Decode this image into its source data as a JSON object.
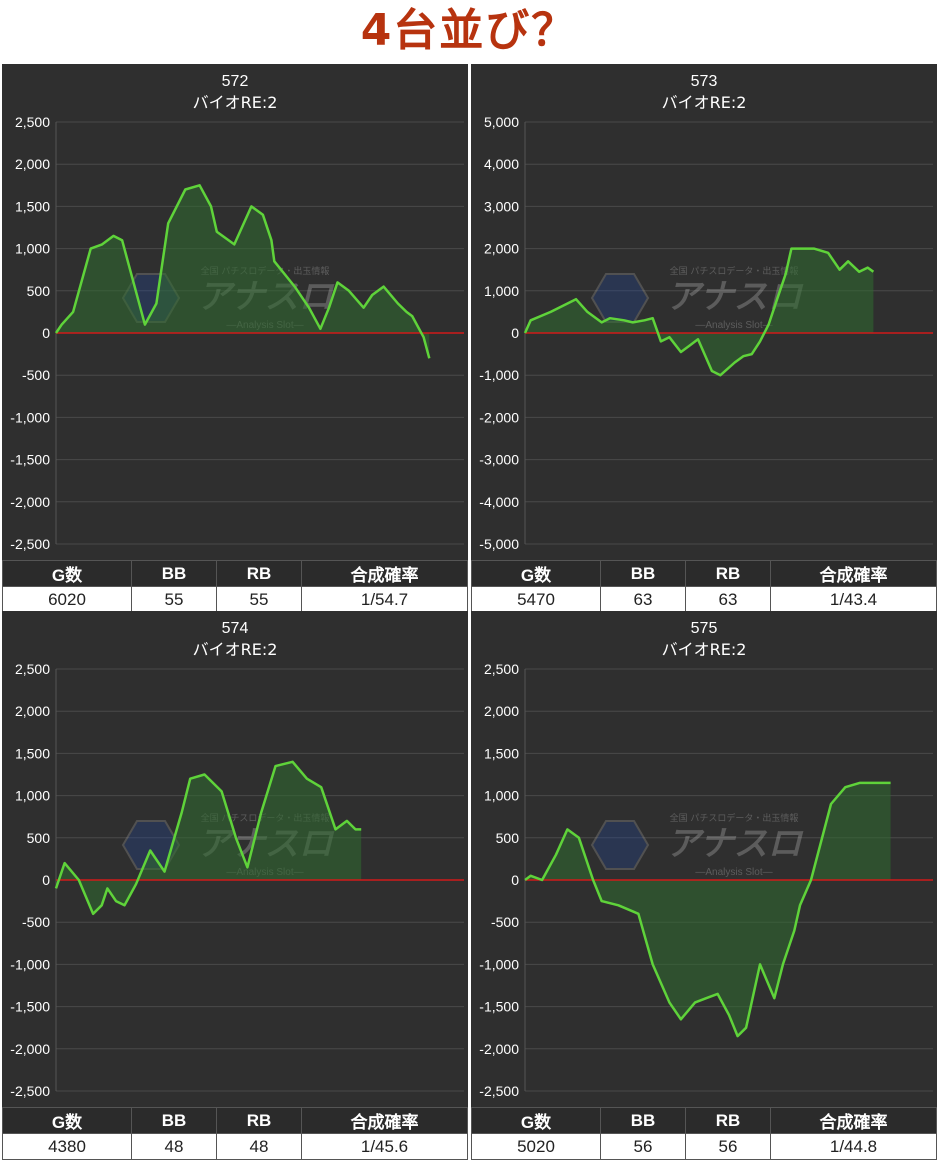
{
  "page_title": "4台並び？",
  "table_headers": [
    "G数",
    "BB",
    "RB",
    "合成確率"
  ],
  "colors": {
    "background": "#2f2f2f",
    "line": "#5fd33a",
    "fill": "#2f6b2f",
    "zero_line": "#d11a1a",
    "title": "#b7330f",
    "grid": "#4a4a4a",
    "text": "#ffffff"
  },
  "watermark": {
    "title": "アナスロ",
    "subtitle": "—Analysis Slot—",
    "tag": "全国 パチスロデータ・出玉情報"
  },
  "chart_data": [
    {
      "type": "area",
      "title": "572",
      "subtitle": "バイオRE:2",
      "ylim": [
        -2500,
        2500
      ],
      "yticks": [
        2500,
        2000,
        1500,
        1000,
        500,
        0,
        -500,
        -1000,
        -1500,
        -2000,
        -2500
      ],
      "ytick_labels": [
        "2,500",
        "2,000",
        "1,500",
        "1,000",
        "500",
        "0",
        "-500",
        "-1,000",
        "-1,500",
        "-2,000",
        "-2,500"
      ],
      "x": [
        0,
        0.014,
        0.042,
        0.085,
        0.113,
        0.141,
        0.162,
        0.176,
        0.218,
        0.246,
        0.275,
        0.317,
        0.352,
        0.38,
        0.394,
        0.437,
        0.479,
        0.507,
        0.528,
        0.535,
        0.585,
        0.62,
        0.648,
        0.669,
        0.69,
        0.718,
        0.754,
        0.775,
        0.803,
        0.838,
        0.859,
        0.873,
        0.901,
        0.915
      ],
      "values": [
        0,
        100,
        250,
        1000,
        1050,
        1150,
        1100,
        850,
        100,
        350,
        1300,
        1700,
        1750,
        1500,
        1200,
        1050,
        1500,
        1400,
        1100,
        850,
        550,
        300,
        50,
        300,
        600,
        500,
        300,
        450,
        550,
        350,
        250,
        200,
        -50,
        -300
      ],
      "grid": true,
      "legend": "none"
    },
    {
      "type": "area",
      "title": "573",
      "subtitle": "バイオRE:2",
      "ylim": [
        -5000,
        5000
      ],
      "yticks": [
        5000,
        4000,
        3000,
        2000,
        1000,
        0,
        -1000,
        -2000,
        -3000,
        -4000,
        -5000
      ],
      "ytick_labels": [
        "5,000",
        "4,000",
        "3,000",
        "2,000",
        "1,000",
        "0",
        "-1,000",
        "-2,000",
        "-3,000",
        "-4,000",
        "-5,000"
      ],
      "x": [
        0,
        0.014,
        0.063,
        0.125,
        0.153,
        0.188,
        0.208,
        0.243,
        0.264,
        0.293,
        0.313,
        0.333,
        0.354,
        0.382,
        0.403,
        0.424,
        0.458,
        0.479,
        0.514,
        0.535,
        0.556,
        0.576,
        0.597,
        0.618,
        0.639,
        0.653,
        0.681,
        0.708,
        0.743,
        0.771,
        0.792,
        0.819,
        0.84,
        0.854
      ],
      "values": [
        0,
        300,
        500,
        800,
        500,
        250,
        350,
        300,
        250,
        300,
        350,
        -200,
        -100,
        -450,
        -300,
        -150,
        -900,
        -1000,
        -700,
        -550,
        -500,
        -200,
        200,
        800,
        1400,
        2000,
        2000,
        2000,
        1900,
        1500,
        1700,
        1450,
        1550,
        1450
      ],
      "grid": true,
      "legend": "none"
    },
    {
      "type": "area",
      "title": "574",
      "subtitle": "バイオRE:2",
      "ylim": [
        -2500,
        2500
      ],
      "yticks": [
        2500,
        2000,
        1500,
        1000,
        500,
        0,
        -500,
        -1000,
        -1500,
        -2000,
        -2500
      ],
      "ytick_labels": [
        "2,500",
        "2,000",
        "1,500",
        "1,000",
        "500",
        "0",
        "-500",
        "-1,000",
        "-1,500",
        "-2,000",
        "-2,500"
      ],
      "x": [
        0,
        0.021,
        0.056,
        0.091,
        0.112,
        0.126,
        0.147,
        0.168,
        0.196,
        0.231,
        0.266,
        0.308,
        0.329,
        0.364,
        0.406,
        0.441,
        0.469,
        0.503,
        0.538,
        0.58,
        0.615,
        0.65,
        0.685,
        0.713,
        0.734,
        0.748
      ],
      "values": [
        -100,
        200,
        0,
        -400,
        -300,
        -100,
        -250,
        -300,
        -50,
        350,
        100,
        800,
        1200,
        1250,
        1050,
        500,
        150,
        800,
        1350,
        1400,
        1200,
        1100,
        600,
        700,
        600,
        600
      ],
      "grid": true,
      "legend": "none"
    },
    {
      "type": "area",
      "title": "575",
      "subtitle": "バイオRE:2",
      "ylim": [
        -2500,
        2500
      ],
      "yticks": [
        2500,
        2000,
        1500,
        1000,
        500,
        0,
        -500,
        -1000,
        -1500,
        -2000,
        -2500
      ],
      "ytick_labels": [
        "2,500",
        "2,000",
        "1,500",
        "1,000",
        "500",
        "0",
        "-500",
        "-1,000",
        "-1,500",
        "-2,000",
        "-2,500"
      ],
      "x": [
        0,
        0.014,
        0.042,
        0.076,
        0.104,
        0.132,
        0.167,
        0.188,
        0.229,
        0.278,
        0.313,
        0.354,
        0.382,
        0.417,
        0.444,
        0.472,
        0.5,
        0.521,
        0.542,
        0.576,
        0.611,
        0.632,
        0.66,
        0.674,
        0.701,
        0.75,
        0.785,
        0.82,
        0.847,
        0.882,
        0.896
      ],
      "values": [
        0,
        50,
        0,
        300,
        600,
        500,
        0,
        -250,
        -300,
        -400,
        -1000,
        -1450,
        -1650,
        -1450,
        -1400,
        -1350,
        -1600,
        -1850,
        -1750,
        -1000,
        -1400,
        -1000,
        -600,
        -300,
        0,
        900,
        1100,
        1150,
        1150,
        1150,
        1150
      ],
      "grid": true,
      "legend": "none"
    }
  ],
  "panels": [
    {
      "stats": [
        "6020",
        "55",
        "55",
        "1/54.7"
      ]
    },
    {
      "stats": [
        "5470",
        "63",
        "63",
        "1/43.4"
      ]
    },
    {
      "stats": [
        "4380",
        "48",
        "48",
        "1/45.6"
      ]
    },
    {
      "stats": [
        "5020",
        "56",
        "56",
        "1/44.8"
      ]
    }
  ]
}
